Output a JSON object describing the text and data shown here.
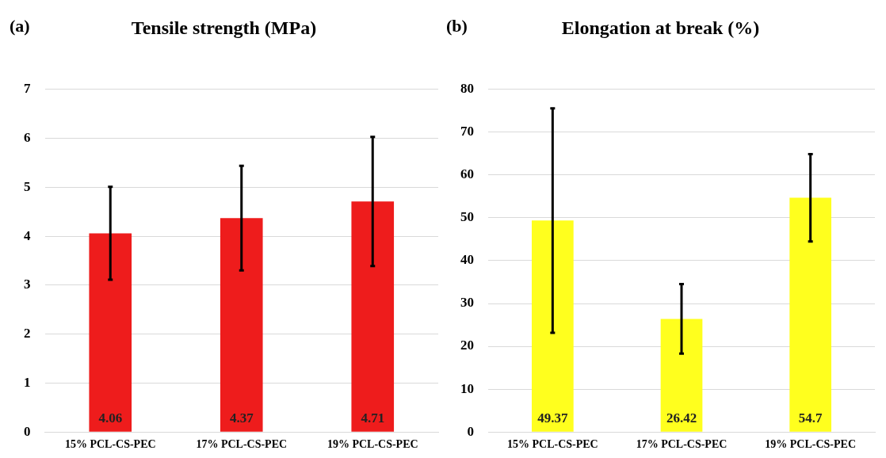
{
  "chart_data": [
    {
      "type": "bar",
      "title": "Tensile strength (MPa)",
      "annotations": [
        "(a)"
      ],
      "categories": [
        "15% PCL-CS-PEC",
        "17% PCL-CS-PEC",
        "19% PCL-CS-PEC"
      ],
      "values": [
        4.06,
        4.37,
        4.71
      ],
      "errors": [
        0.95,
        1.07,
        1.32
      ],
      "color": "#ee1c1c",
      "ylim": [
        0,
        7
      ],
      "yticks": [
        0,
        1,
        2,
        3,
        4,
        5,
        6,
        7
      ],
      "grid": "y",
      "data_labels": true
    },
    {
      "type": "bar",
      "title": "Elongation at break (%)",
      "annotations": [
        "(b)"
      ],
      "categories": [
        "15% PCL-CS-PEC",
        "17% PCL-CS-PEC",
        "19% PCL-CS-PEC"
      ],
      "values": [
        49.37,
        26.42,
        54.7
      ],
      "errors": [
        26.2,
        8.1,
        10.2
      ],
      "color": "#ffff1e",
      "ylim": [
        0,
        80
      ],
      "yticks": [
        0,
        10,
        20,
        30,
        40,
        50,
        60,
        70,
        80
      ],
      "grid": "y",
      "data_labels": true
    }
  ]
}
